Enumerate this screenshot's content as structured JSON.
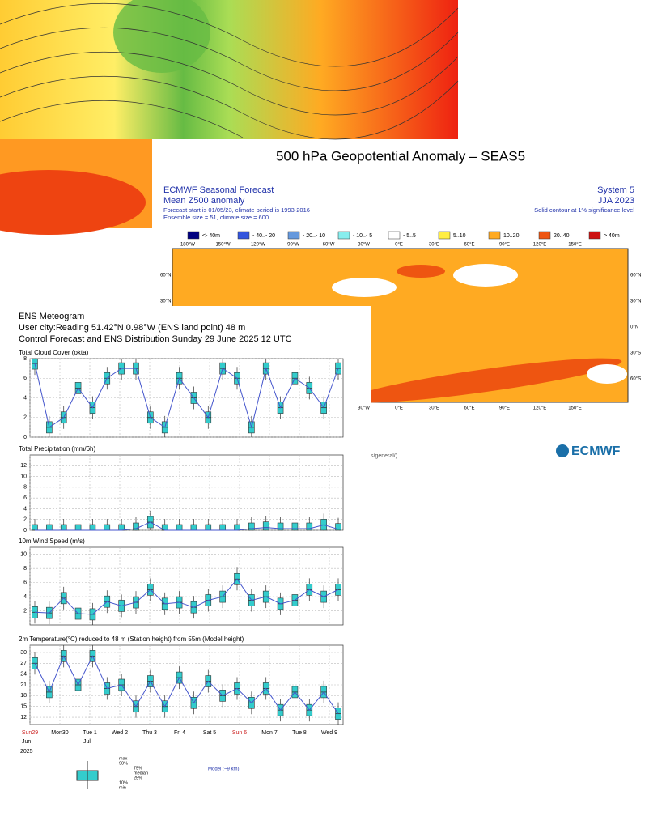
{
  "seasonal": {
    "title": "500 hPa Geopotential Anomaly – SEAS5",
    "header_left": [
      "ECMWF Seasonal Forecast",
      "Mean Z500 anomaly"
    ],
    "info": [
      "Forecast start is 01/05/23, climate period is 1993-2016",
      "Ensemble size = 51, climate size = 600"
    ],
    "header_right": [
      "System 5",
      "JJA 2023"
    ],
    "note": "Solid contour at 1% significance level",
    "legend": [
      {
        "label": "<- 40m",
        "color": "#000080"
      },
      {
        "label": "- 40..- 20",
        "color": "#3355dd"
      },
      {
        "label": "- 20..- 10",
        "color": "#6699dd"
      },
      {
        "label": "- 10..- 5",
        "color": "#88eeee"
      },
      {
        "label": "- 5..5",
        "color": "#ffffff"
      },
      {
        "label": "5..10",
        "color": "#ffee44"
      },
      {
        "label": "10..20",
        "color": "#ffaa22"
      },
      {
        "label": "20..40",
        "color": "#ee5511"
      },
      {
        "label": "> 40m",
        "color": "#cc1111"
      }
    ],
    "lon_labels": [
      "180°W",
      "150°W",
      "120°W",
      "90°W",
      "60°W",
      "30°W",
      "0°E",
      "30°E",
      "60°E",
      "90°E",
      "120°E",
      "150°E"
    ],
    "lat_labels": [
      "60°N",
      "30°N",
      "0°N",
      "30°S",
      "60°S"
    ],
    "footer": "s/general/)",
    "logo": "ECMWF"
  },
  "meteogram": {
    "title": "ENS Meteogram",
    "subtitle": "User city:Reading 51.42°N 0.98°W (ENS land point) 48 m",
    "subtitle2": "Control Forecast and ENS Distribution Sunday 29 June 2025 12 UTC",
    "days": [
      "Sun29",
      "Mon30",
      "Tue 1",
      "Wed 2",
      "Thu 3",
      "Fri 4",
      "Sat 5",
      "Sun 6",
      "Mon 7",
      "Tue 8",
      "Wed 9"
    ],
    "months": [
      "Jun",
      "Jul"
    ],
    "year": "2025",
    "key": [
      "max",
      "90%",
      "75%",
      "median",
      "25%",
      "10%",
      "min"
    ],
    "model": "Model (~9 km)"
  },
  "chart_data": [
    {
      "type": "box",
      "title": "Total Cloud Cover (okta)",
      "ylim": [
        0,
        8
      ],
      "yticks": [
        0,
        2,
        4,
        6,
        8
      ],
      "color": "#33cccc",
      "values": [
        7.5,
        1,
        2,
        5,
        3,
        6,
        7,
        7,
        2,
        1,
        6,
        4,
        2,
        7,
        6,
        1,
        7,
        3,
        6,
        5,
        3,
        7
      ]
    },
    {
      "type": "box",
      "title": "Total Precipitation (mm/6h)",
      "ylim": [
        0,
        14
      ],
      "yticks": [
        0,
        2,
        4,
        6,
        8,
        10,
        12
      ],
      "color": "#33cccc",
      "values": [
        0,
        0,
        0,
        0,
        0,
        0,
        0,
        0.3,
        1.5,
        0,
        0,
        0,
        0,
        0,
        0,
        0.3,
        0.5,
        0.3,
        0.3,
        0.3,
        1,
        0.2
      ]
    },
    {
      "type": "box",
      "title": "10m Wind Speed (m/s)",
      "ylim": [
        0,
        11
      ],
      "yticks": [
        2,
        4,
        6,
        8,
        10
      ],
      "color": "#33cccc",
      "values": [
        1.8,
        1.7,
        3.8,
        1.6,
        1.5,
        3.3,
        2.7,
        3.2,
        5,
        3,
        3.2,
        2.5,
        3.5,
        4,
        6.5,
        3.5,
        4,
        3,
        3.5,
        5,
        4,
        5
      ]
    },
    {
      "type": "box",
      "title": "2m Temperature(°C) reduced to 48 m (Station height) from 55m (Model height)",
      "ylim": [
        10,
        32
      ],
      "yticks": [
        12,
        15,
        18,
        21,
        24,
        27,
        30
      ],
      "color": "#33cccc",
      "values": [
        27,
        19,
        29,
        21,
        29,
        20,
        21,
        15,
        22,
        15,
        23,
        16,
        22,
        18,
        20,
        16,
        20,
        14,
        19,
        14,
        19,
        13
      ]
    }
  ]
}
